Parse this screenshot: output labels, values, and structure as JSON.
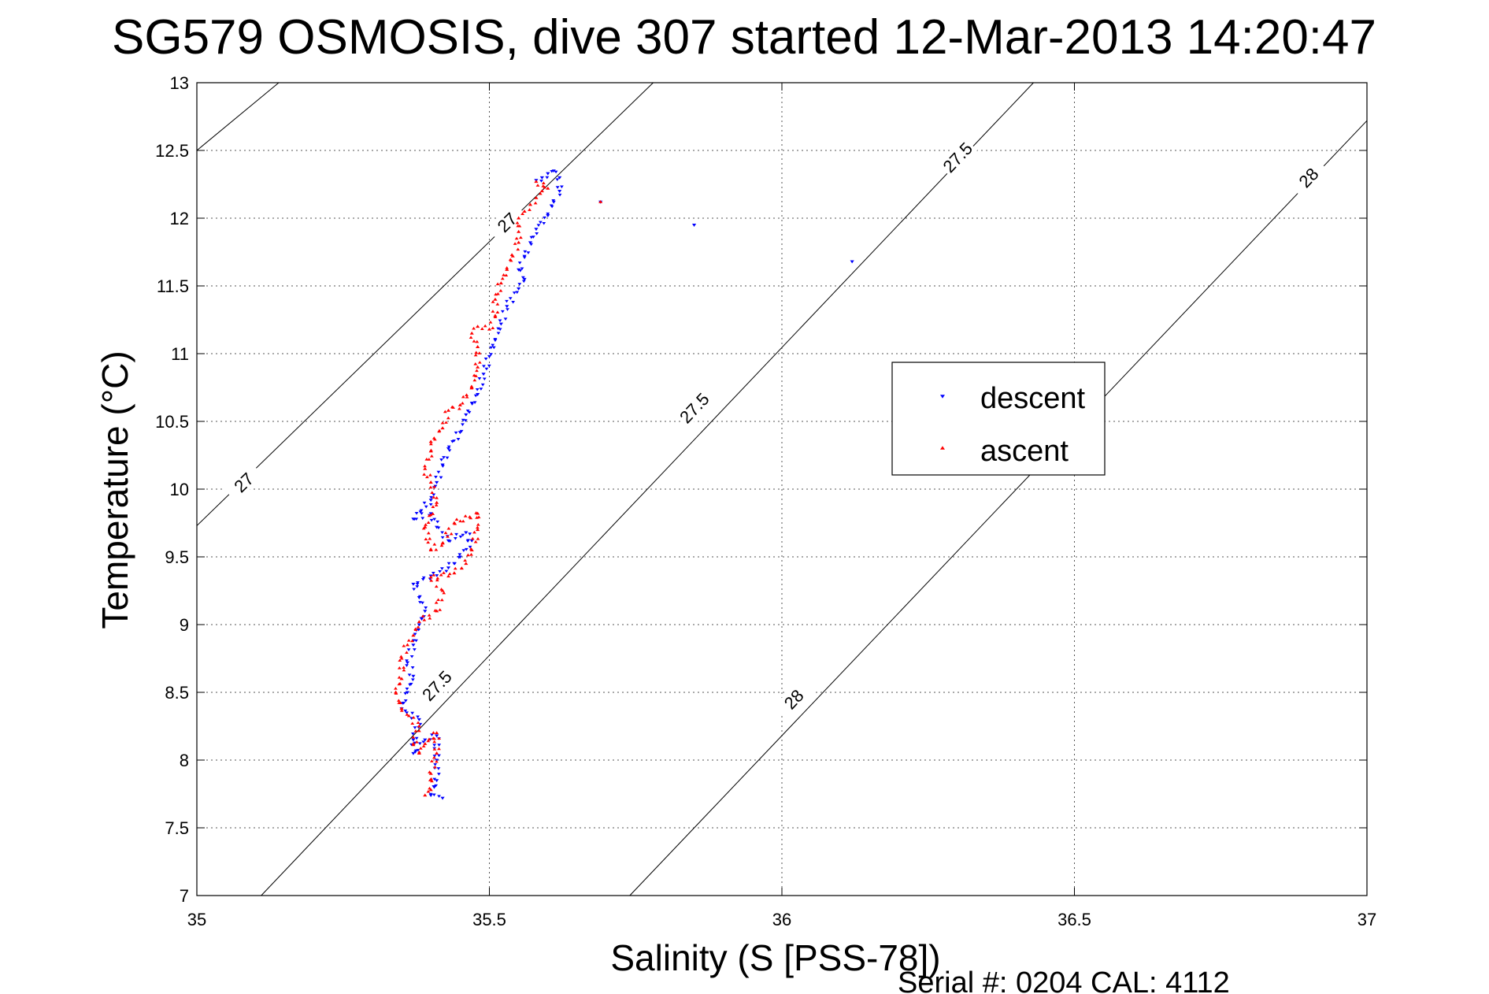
{
  "chart_data": {
    "type": "scatter",
    "title": "SG579 OSMOSIS, dive 307 started 12-Mar-2013 14:20:47",
    "xlabel": "Salinity (S [PSS-78])",
    "ylabel": "Temperature (°C)",
    "xlim": [
      35,
      37
    ],
    "ylim": [
      7,
      13
    ],
    "x_ticks": [
      "35",
      "35.5",
      "36",
      "36.5",
      "37"
    ],
    "y_ticks": [
      "7",
      "7.5",
      "8",
      "8.5",
      "9",
      "9.5",
      "10",
      "10.5",
      "11",
      "11.5",
      "12",
      "12.5",
      "13"
    ],
    "grid": true,
    "legend_position": "center-right",
    "series": [
      {
        "name": "descent",
        "color": "#0000ff",
        "marker": "triangle-down",
        "points": [
          [
            35.42,
            7.72
          ],
          [
            35.4,
            7.74
          ],
          [
            35.41,
            7.85
          ],
          [
            35.41,
            8.0
          ],
          [
            35.41,
            8.18
          ],
          [
            35.39,
            8.15
          ],
          [
            35.37,
            8.05
          ],
          [
            35.37,
            8.15
          ],
          [
            35.38,
            8.3
          ],
          [
            35.35,
            8.38
          ],
          [
            35.36,
            8.5
          ],
          [
            35.37,
            8.62
          ],
          [
            35.36,
            8.72
          ],
          [
            35.37,
            8.85
          ],
          [
            35.38,
            9.0
          ],
          [
            35.39,
            9.1
          ],
          [
            35.38,
            9.2
          ],
          [
            35.37,
            9.3
          ],
          [
            35.4,
            9.36
          ],
          [
            35.43,
            9.42
          ],
          [
            35.45,
            9.5
          ],
          [
            35.47,
            9.62
          ],
          [
            35.46,
            9.68
          ],
          [
            35.43,
            9.62
          ],
          [
            35.41,
            9.72
          ],
          [
            35.4,
            9.82
          ],
          [
            35.37,
            9.78
          ],
          [
            35.4,
            9.92
          ],
          [
            35.41,
            10.05
          ],
          [
            35.42,
            10.18
          ],
          [
            35.43,
            10.3
          ],
          [
            35.45,
            10.42
          ],
          [
            35.46,
            10.55
          ],
          [
            35.48,
            10.7
          ],
          [
            35.49,
            10.85
          ],
          [
            35.5,
            10.98
          ],
          [
            35.51,
            11.1
          ],
          [
            35.52,
            11.22
          ],
          [
            35.53,
            11.35
          ],
          [
            35.55,
            11.48
          ],
          [
            35.56,
            11.55
          ],
          [
            35.55,
            11.62
          ],
          [
            35.56,
            11.72
          ],
          [
            35.57,
            11.82
          ],
          [
            35.58,
            11.92
          ],
          [
            35.6,
            12.02
          ],
          [
            35.61,
            12.12
          ],
          [
            35.62,
            12.2
          ],
          [
            35.62,
            12.3
          ],
          [
            35.61,
            12.35
          ],
          [
            35.6,
            12.33
          ],
          [
            35.59,
            12.3
          ],
          [
            35.58,
            12.28
          ],
          [
            35.69,
            12.12
          ],
          [
            35.85,
            11.95
          ],
          [
            36.12,
            11.68
          ]
        ]
      },
      {
        "name": "ascent",
        "color": "#ff0000",
        "marker": "triangle-up",
        "points": [
          [
            35.39,
            7.74
          ],
          [
            35.4,
            7.78
          ],
          [
            35.4,
            7.9
          ],
          [
            35.41,
            8.05
          ],
          [
            35.41,
            8.2
          ],
          [
            35.39,
            8.12
          ],
          [
            35.38,
            8.05
          ],
          [
            35.37,
            8.12
          ],
          [
            35.38,
            8.25
          ],
          [
            35.35,
            8.38
          ],
          [
            35.34,
            8.5
          ],
          [
            35.35,
            8.6
          ],
          [
            35.35,
            8.75
          ],
          [
            35.36,
            8.85
          ],
          [
            35.37,
            8.92
          ],
          [
            35.38,
            9.02
          ],
          [
            35.41,
            9.1
          ],
          [
            35.42,
            9.25
          ],
          [
            35.4,
            9.35
          ],
          [
            35.44,
            9.38
          ],
          [
            35.46,
            9.45
          ],
          [
            35.47,
            9.55
          ],
          [
            35.48,
            9.7
          ],
          [
            35.48,
            9.82
          ],
          [
            35.44,
            9.75
          ],
          [
            35.42,
            9.6
          ],
          [
            35.4,
            9.55
          ],
          [
            35.39,
            9.72
          ],
          [
            35.41,
            9.9
          ],
          [
            35.4,
            10.05
          ],
          [
            35.39,
            10.15
          ],
          [
            35.4,
            10.28
          ],
          [
            35.4,
            10.35
          ],
          [
            35.42,
            10.45
          ],
          [
            35.43,
            10.58
          ],
          [
            35.45,
            10.62
          ],
          [
            35.47,
            10.75
          ],
          [
            35.48,
            10.9
          ],
          [
            35.48,
            11.05
          ],
          [
            35.47,
            11.15
          ],
          [
            35.48,
            11.2
          ],
          [
            35.5,
            11.18
          ],
          [
            35.51,
            11.28
          ],
          [
            35.51,
            11.4
          ],
          [
            35.52,
            11.52
          ],
          [
            35.53,
            11.62
          ],
          [
            35.54,
            11.72
          ],
          [
            35.55,
            11.82
          ],
          [
            35.55,
            11.9
          ],
          [
            35.55,
            12.0
          ],
          [
            35.56,
            12.05
          ],
          [
            35.57,
            12.1
          ],
          [
            35.58,
            12.15
          ],
          [
            35.59,
            12.2
          ],
          [
            35.6,
            12.22
          ],
          [
            35.58,
            12.27
          ],
          [
            35.69,
            12.12
          ]
        ]
      }
    ],
    "contours": [
      {
        "label": "27",
        "line": [
          [
            35.0,
            12.5
          ],
          [
            35.14,
            13.0
          ]
        ],
        "anchor": [
          35.0,
          12.5
        ]
      },
      {
        "label": "27",
        "line": [
          [
            35.0,
            9.73
          ],
          [
            35.78,
            13.0
          ]
        ],
        "label_positions": [
          [
            35.08,
            10.05
          ],
          [
            35.53,
            11.97
          ]
        ]
      },
      {
        "label": "27.5",
        "line": [
          [
            35.11,
            7.0
          ],
          [
            36.43,
            13.0
          ]
        ],
        "label_positions": [
          [
            35.41,
            8.55
          ],
          [
            35.85,
            10.6
          ],
          [
            36.3,
            12.45
          ]
        ]
      },
      {
        "label": "28",
        "line": [
          [
            35.74,
            7.0
          ],
          [
            37.0,
            12.72
          ]
        ],
        "label_positions": [
          [
            36.02,
            8.45
          ],
          [
            36.9,
            12.3
          ]
        ]
      }
    ],
    "legend": [
      "descent",
      "ascent"
    ]
  },
  "footer": {
    "serial": "Serial #: 0204  CAL: 4112"
  }
}
